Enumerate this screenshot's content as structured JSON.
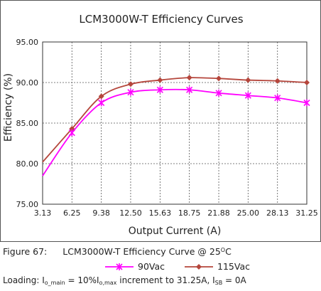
{
  "chart_data": {
    "type": "line",
    "title": "LCM3000W-T  Efficiency Curves",
    "xlabel": "Output Current (A)",
    "ylabel": "Efficiency (%)",
    "categories": [
      "3.13",
      "6.25",
      "9.38",
      "12.50",
      "15.63",
      "18.75",
      "21.88",
      "25.00",
      "28.13",
      "31.25"
    ],
    "x": [
      3.13,
      6.25,
      9.38,
      12.5,
      15.63,
      18.75,
      21.88,
      25.0,
      28.13,
      31.25
    ],
    "ylim": [
      75,
      95
    ],
    "yticks": [
      "75.00",
      "80.00",
      "85.00",
      "90.00",
      "95.00"
    ],
    "grid": true,
    "legend_position": "bottom",
    "series": [
      {
        "name": "90Vac",
        "color": "#ff00ff",
        "marker": "x-star",
        "values": [
          78.5,
          83.8,
          87.5,
          88.8,
          89.1,
          89.1,
          88.7,
          88.4,
          88.1,
          87.5
        ]
      },
      {
        "name": "115Vac",
        "color": "#b5463c",
        "marker": "diamond",
        "values": [
          80.2,
          84.3,
          88.3,
          89.8,
          90.3,
          90.6,
          90.5,
          90.3,
          90.2,
          90.0
        ]
      }
    ]
  },
  "caption": {
    "figure_label": "Figure 67:",
    "text_before": "LCM3000W-T Efficiency Curve @ 25",
    "degree_sup": "O",
    "text_after": "C"
  },
  "loading": {
    "prefix": "Loading:  I",
    "sub1": "o_main",
    "part2": " = 10%I",
    "sub2": "o,max",
    "part3": " increment to 31.25A, I",
    "sub3": "SB",
    "part4": " = 0A"
  }
}
